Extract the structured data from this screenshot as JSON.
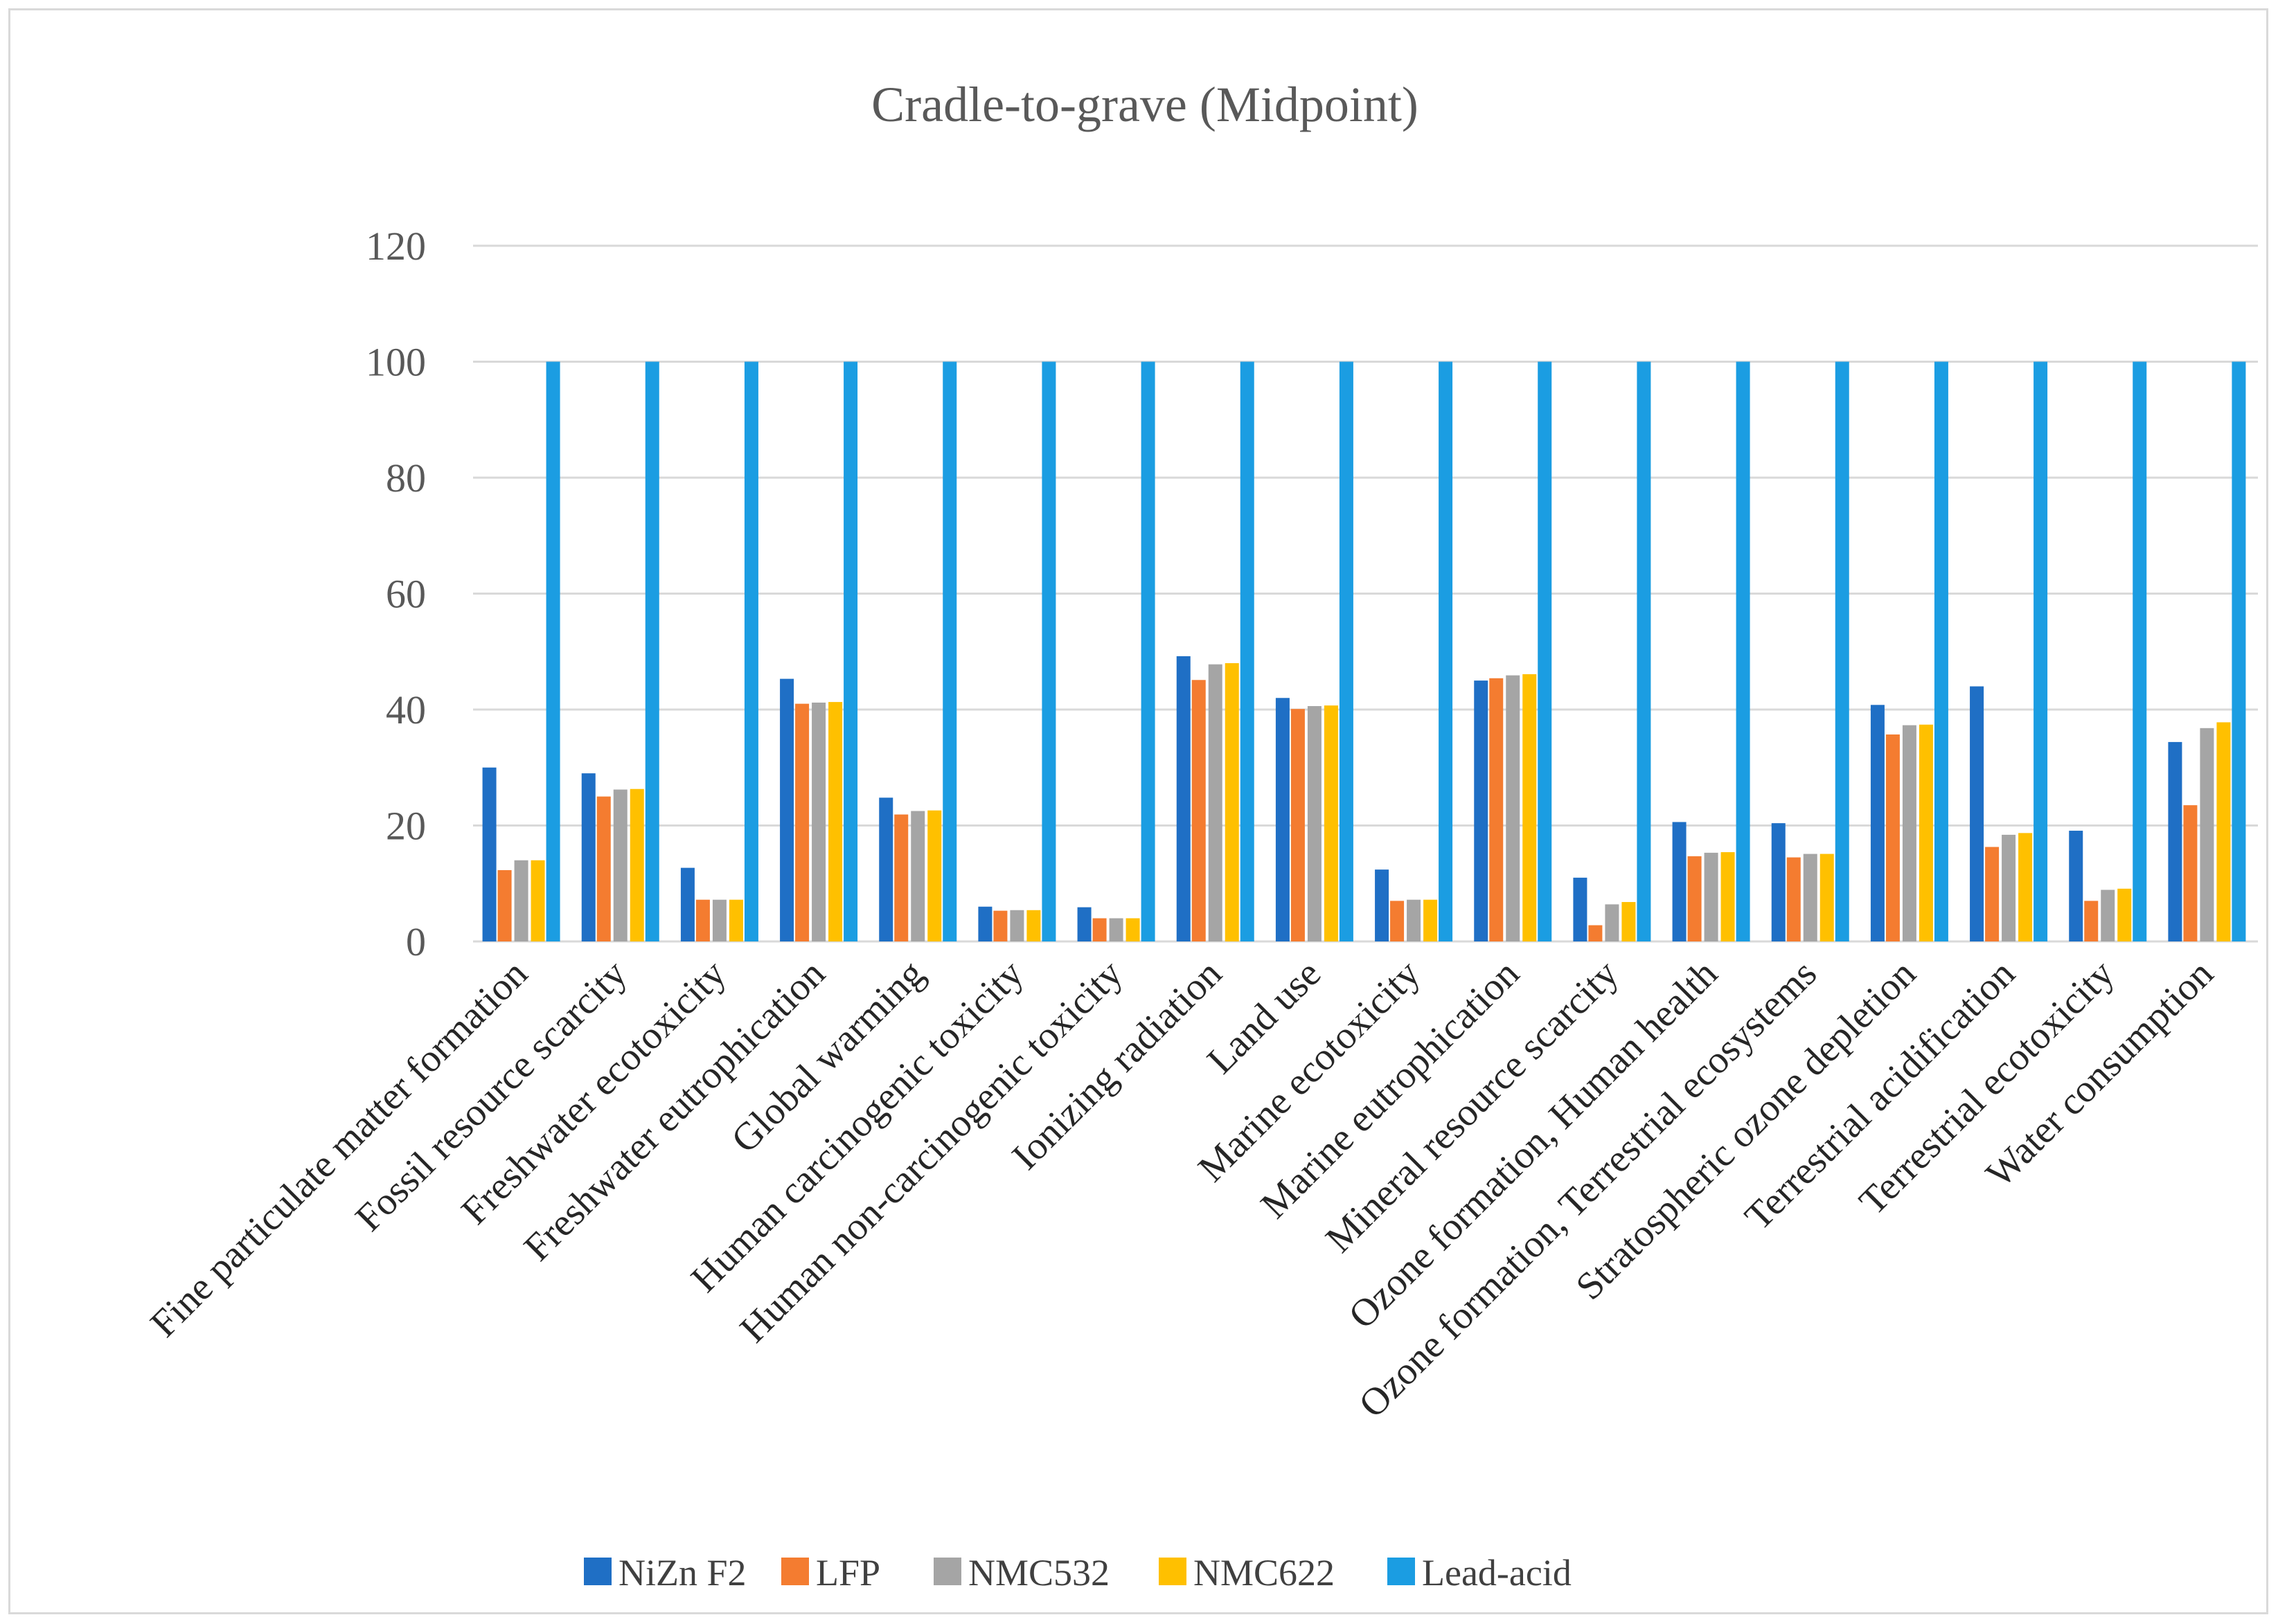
{
  "chart_data": {
    "type": "bar",
    "title": "Cradle-to-grave (Midpoint)",
    "xlabel": "",
    "ylabel": "",
    "ylim": [
      0,
      120
    ],
    "yticks": [
      0,
      20,
      40,
      60,
      80,
      100,
      120
    ],
    "grid": true,
    "legend_position": "bottom",
    "categories": [
      "Fine particulate matter formation",
      "Fossil resource scarcity",
      "Freshwater ecotoxicity",
      "Freshwater eutrophication",
      "Global warming",
      "Human carcinogenic toxicity",
      "Human non-carcinogenic toxicity",
      "Ionizing radiation",
      "Land use",
      "Marine ecotoxicity",
      "Marine eutrophication",
      "Mineral resource scarcity",
      "Ozone formation, Human health",
      "Ozone formation, Terrestrial ecosystems",
      "Stratospheric ozone depletion",
      "Terrestrial acidification",
      "Terrestrial ecotoxicity",
      "Water consumption"
    ],
    "series": [
      {
        "name": "NiZn F2",
        "color": "#1f6fc5",
        "values": [
          30,
          29,
          12.7,
          45.3,
          24.8,
          6,
          5.9,
          49.2,
          42,
          12.4,
          45,
          11,
          20.6,
          20.4,
          40.8,
          44,
          19.1,
          34.4
        ]
      },
      {
        "name": "LFP",
        "color": "#f47c30",
        "values": [
          12.3,
          25,
          7.2,
          41,
          21.9,
          5.3,
          4,
          45.1,
          40.1,
          7,
          45.4,
          2.8,
          14.7,
          14.5,
          35.7,
          16.3,
          7,
          23.5
        ]
      },
      {
        "name": "NMC532",
        "color": "#a5a5a5",
        "values": [
          14,
          26.2,
          7.2,
          41.2,
          22.5,
          5.4,
          4,
          47.8,
          40.6,
          7.2,
          45.9,
          6.4,
          15.3,
          15.1,
          37.3,
          18.4,
          8.9,
          36.8
        ]
      },
      {
        "name": "NMC622",
        "color": "#ffc000",
        "values": [
          14,
          26.3,
          7.2,
          41.3,
          22.6,
          5.4,
          4,
          48,
          40.7,
          7.2,
          46.1,
          6.8,
          15.4,
          15.1,
          37.4,
          18.7,
          9.1,
          37.8
        ]
      },
      {
        "name": "Lead-acid",
        "color": "#1b9de2",
        "values": [
          100,
          100,
          100,
          100,
          100,
          100,
          100,
          100,
          100,
          100,
          100,
          100,
          100,
          100,
          100,
          100,
          100,
          100
        ]
      }
    ]
  }
}
